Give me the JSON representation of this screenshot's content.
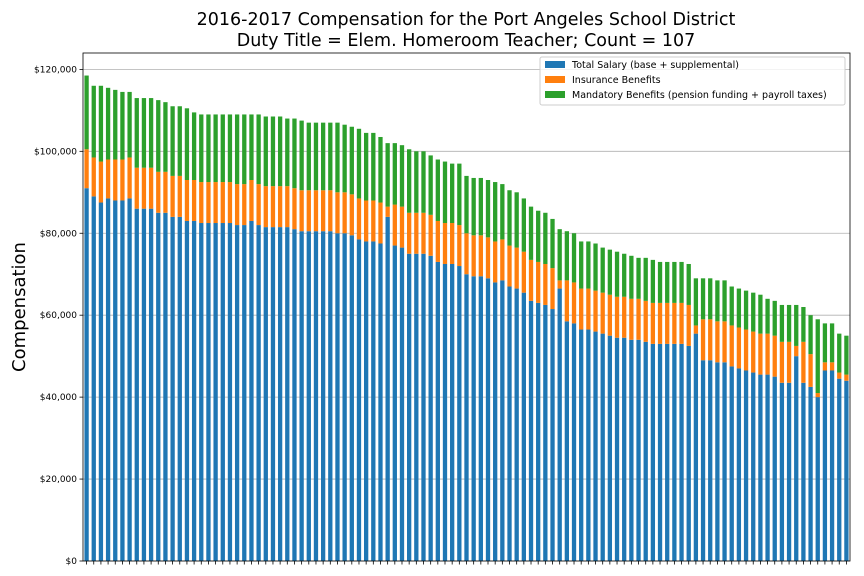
{
  "chart_data": {
    "type": "bar",
    "stacked": true,
    "title": "2016-2017 Compensation for the Port Angeles School District",
    "subtitle": "Duty Title = Elem. Homeroom Teacher; Count = 107",
    "xlabel": "",
    "ylabel": "Compensation",
    "ylim": [
      0,
      124000
    ],
    "yticks": [
      0,
      20000,
      40000,
      60000,
      80000,
      100000,
      120000
    ],
    "ytick_labels": [
      "$0",
      "$20,000",
      "$40,000",
      "$60,000",
      "$80,000",
      "$100,000",
      "$120,000"
    ],
    "grid": "y",
    "legend_position": "top-right",
    "series": [
      {
        "name": "Total Salary (base + supplemental)",
        "color": "#1f77b4",
        "values": [
          91000,
          89000,
          87500,
          88500,
          88000,
          88000,
          88500,
          86000,
          86000,
          86000,
          85000,
          85000,
          84000,
          84000,
          83000,
          83000,
          82500,
          82500,
          82500,
          82500,
          82500,
          82000,
          82000,
          83000,
          82000,
          81500,
          81500,
          81500,
          81500,
          81000,
          80500,
          80500,
          80500,
          80500,
          80500,
          80000,
          80000,
          79500,
          78500,
          78000,
          78000,
          77500,
          84000,
          77000,
          76500,
          75000,
          75000,
          75000,
          74500,
          73000,
          72500,
          72500,
          72000,
          70000,
          69500,
          69500,
          69000,
          68000,
          68500,
          67000,
          66500,
          65500,
          63500,
          63000,
          62500,
          61500,
          66500,
          58500,
          58000,
          56500,
          56500,
          56000,
          55500,
          55000,
          54500,
          54500,
          54000,
          54000,
          53500,
          53000,
          53000,
          53000,
          53000,
          53000,
          52500,
          55500,
          49000,
          49000,
          48500,
          48500,
          47500,
          47000,
          46500,
          46000,
          45500,
          45500,
          45000,
          43500,
          43500,
          50000,
          43500,
          42500,
          40000,
          46500,
          46500,
          44500,
          44000
        ]
      },
      {
        "name": "Insurance Benefits",
        "color": "#ff7f0e",
        "values": [
          9500,
          9500,
          10000,
          9500,
          10000,
          10000,
          10000,
          10000,
          10000,
          10000,
          10000,
          10000,
          10000,
          10000,
          10000,
          10000,
          10000,
          10000,
          10000,
          10000,
          10000,
          10000,
          10000,
          10000,
          10000,
          10000,
          10000,
          10000,
          10000,
          10000,
          10000,
          10000,
          10000,
          10000,
          10000,
          10000,
          10000,
          10000,
          10000,
          10000,
          10000,
          10000,
          2500,
          10000,
          10000,
          10000,
          10000,
          10000,
          10000,
          10000,
          10000,
          10000,
          10000,
          10000,
          10000,
          10000,
          10000,
          10000,
          10000,
          10000,
          10000,
          10000,
          10000,
          10000,
          10000,
          10000,
          2000,
          10000,
          10000,
          10000,
          10000,
          10000,
          10000,
          10000,
          10000,
          10000,
          10000,
          10000,
          10000,
          10000,
          10000,
          10000,
          10000,
          10000,
          10000,
          2000,
          10000,
          10000,
          10000,
          10000,
          10000,
          10000,
          10000,
          10000,
          10000,
          10000,
          10000,
          10000,
          10000,
          2500,
          10000,
          8000,
          1000,
          2000,
          2000,
          1500,
          1500
        ]
      },
      {
        "name": "Mandatory Benefits (pension funding + payroll taxes)",
        "color": "#2ca02c",
        "values": [
          18000,
          17500,
          18500,
          17500,
          17000,
          16500,
          16000,
          17000,
          17000,
          17000,
          17500,
          17000,
          17000,
          17000,
          17500,
          16500,
          16500,
          16500,
          16500,
          16500,
          16500,
          17000,
          17000,
          16000,
          17000,
          17000,
          17000,
          17000,
          16500,
          17000,
          17000,
          16500,
          16500,
          16500,
          16500,
          17000,
          16500,
          16500,
          17000,
          16500,
          16500,
          16000,
          15500,
          15000,
          15000,
          15500,
          15000,
          15000,
          14500,
          15000,
          15000,
          14500,
          15000,
          14000,
          14000,
          14000,
          14000,
          14500,
          13500,
          13500,
          13500,
          13000,
          13000,
          12500,
          12500,
          12000,
          12500,
          12000,
          12000,
          11500,
          11500,
          11500,
          11000,
          11000,
          11000,
          10500,
          10500,
          10000,
          10500,
          10500,
          10000,
          10000,
          10000,
          10000,
          10000,
          11500,
          10000,
          10000,
          10000,
          10000,
          9500,
          9500,
          9500,
          9500,
          9500,
          8500,
          8500,
          9000,
          9000,
          10000,
          8500,
          9500,
          18000,
          9500,
          9500,
          9500,
          9500
        ]
      }
    ]
  }
}
